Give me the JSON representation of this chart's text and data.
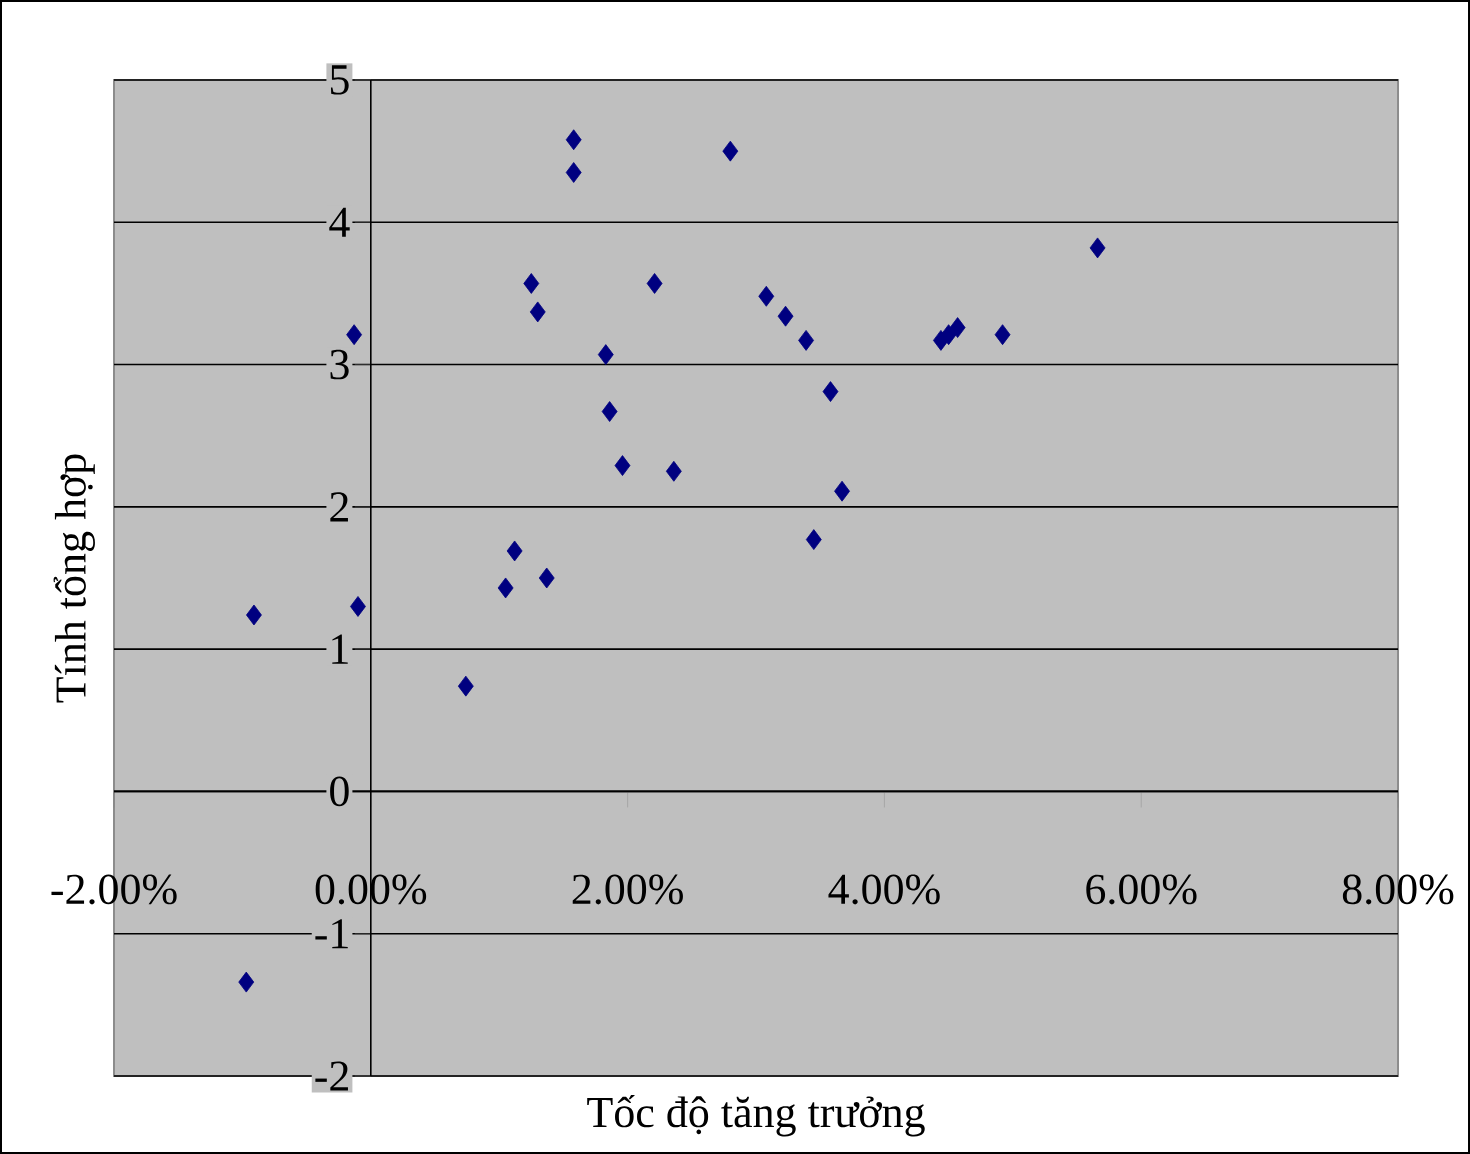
{
  "chart_data": {
    "type": "scatter",
    "xlabel": "Tốc độ tăng trưởng",
    "ylabel": "Tính tổng hợp",
    "x": [
      -0.91,
      -0.97,
      -0.1,
      -0.13,
      0.74,
      1.05,
      1.12,
      1.37,
      1.25,
      1.3,
      1.58,
      1.58,
      1.83,
      1.86,
      1.96,
      2.21,
      2.36,
      2.8,
      3.08,
      3.23,
      3.39,
      3.45,
      3.58,
      3.67,
      4.44,
      4.5,
      4.57,
      4.92,
      5.66
    ],
    "values": [
      1.24,
      -1.34,
      1.3,
      3.21,
      0.74,
      1.43,
      1.69,
      1.5,
      3.57,
      3.37,
      4.58,
      4.35,
      3.07,
      2.67,
      2.29,
      3.57,
      2.25,
      4.5,
      3.48,
      3.34,
      3.17,
      1.77,
      2.81,
      2.11,
      3.17,
      3.21,
      3.26,
      3.21,
      3.82
    ],
    "color": "#000080",
    "marker": "diamond",
    "grid": "y",
    "xlim": [
      -2,
      8
    ],
    "ylim": [
      -2,
      5
    ],
    "xticks": [
      {
        "value": -2,
        "label": "-2.00%"
      },
      {
        "value": 0,
        "label": "0.00%"
      },
      {
        "value": 2,
        "label": "2.00%"
      },
      {
        "value": 4,
        "label": "4.00%"
      },
      {
        "value": 6,
        "label": "6.00%"
      },
      {
        "value": 8,
        "label": "8.00%"
      }
    ],
    "yticks": [
      -2,
      -1,
      0,
      1,
      2,
      3,
      4,
      5
    ]
  }
}
